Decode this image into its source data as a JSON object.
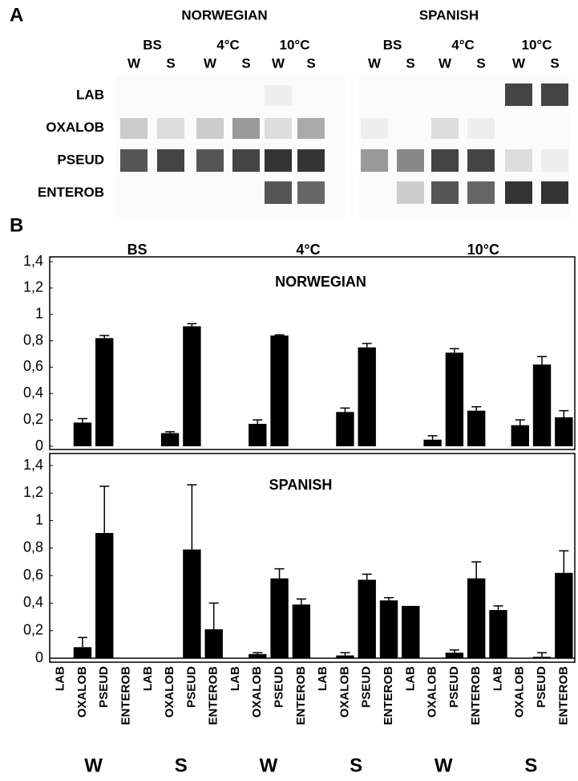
{
  "panel_a": {
    "label": "A",
    "blots": [
      {
        "title": "NORWEGIAN",
        "conditions": [
          "BS",
          "4°C",
          "10°C"
        ],
        "lanes": [
          "W",
          "S",
          "W",
          "S",
          "W",
          "S"
        ],
        "rows": [
          "LAB",
          "OXALOB",
          "PSEUD",
          "ENTEROB"
        ]
      },
      {
        "title": "SPANISH",
        "conditions": [
          "BS",
          "4°C",
          "10°C"
        ],
        "lanes": [
          "W",
          "S",
          "W",
          "S",
          "W",
          "S"
        ]
      }
    ]
  },
  "panel_b_label": "B",
  "chart_data": [
    {
      "type": "bar",
      "title": "NORWEGIAN",
      "conditions": [
        "BS",
        "4°C",
        "10°C"
      ],
      "values": [
        0,
        0.18,
        0.82,
        0,
        0,
        0.1,
        0.91,
        0,
        0,
        0.17,
        0.84,
        0,
        0,
        0.26,
        0.75,
        0,
        0,
        0.05,
        0.71,
        0.27,
        0,
        0.16,
        0.62,
        0.22
      ],
      "errors": [
        null,
        0.03,
        0.02,
        null,
        null,
        0.01,
        0.02,
        null,
        null,
        0.03,
        0.005,
        null,
        null,
        0.03,
        0.03,
        null,
        null,
        0.03,
        0.03,
        0.03,
        null,
        0.04,
        0.06,
        0.05
      ],
      "color": "#000000",
      "ylim": [
        0,
        1.4
      ],
      "yticks": [
        0,
        {
          "value": 0.2,
          "label": "0,2"
        },
        {
          "value": 0.4,
          "label": "0,4"
        },
        {
          "value": 0.6,
          "label": "0,6"
        },
        {
          "value": 0.8,
          "label": "0,8"
        },
        1,
        {
          "value": 1.2,
          "label": "1,2"
        },
        {
          "value": 1.4,
          "label": "1,4"
        }
      ]
    },
    {
      "type": "bar",
      "title": "SPANISH",
      "categories": [
        "LAB",
        "OXALOB",
        "PSEUD",
        "ENTEROB",
        "LAB",
        "OXALOB",
        "PSEUD",
        "ENTEROB",
        "LAB",
        "OXALOB",
        "PSEUD",
        "ENTEROB",
        "LAB",
        "OXALOB",
        "PSEUD",
        "ENTEROB",
        "LAB",
        "OXALOB",
        "PSEUD",
        "ENTEROB",
        "LAB",
        "OXALOB",
        "PSEUD",
        "ENTEROB"
      ],
      "groups": [
        "W",
        "S",
        "W",
        "S",
        "W",
        "S"
      ],
      "values": [
        0,
        0.08,
        0.91,
        0,
        0,
        0,
        0.79,
        0.21,
        0,
        0.03,
        0.58,
        0.39,
        0,
        0.02,
        0.57,
        0.42,
        0.38,
        0,
        0.04,
        0.58,
        0.35,
        0,
        0.01,
        0.62
      ],
      "errors": [
        null,
        0.07,
        0.34,
        null,
        null,
        null,
        0.47,
        0.19,
        null,
        0.01,
        0.07,
        0.04,
        null,
        0.02,
        0.04,
        0.02,
        null,
        null,
        0.02,
        0.12,
        0.03,
        null,
        0.03,
        0.16
      ],
      "color": "#000000",
      "ylim": [
        0,
        1.4
      ],
      "yticks": [
        0,
        {
          "value": 0.2,
          "label": "0,2"
        },
        {
          "value": 0.4,
          "label": "0,4"
        },
        {
          "value": 0.6,
          "label": "0,6"
        },
        {
          "value": 0.8,
          "label": "0,8"
        },
        1,
        {
          "value": 1.2,
          "label": "1,2"
        },
        {
          "value": 1.4,
          "label": "1,4"
        }
      ]
    }
  ]
}
